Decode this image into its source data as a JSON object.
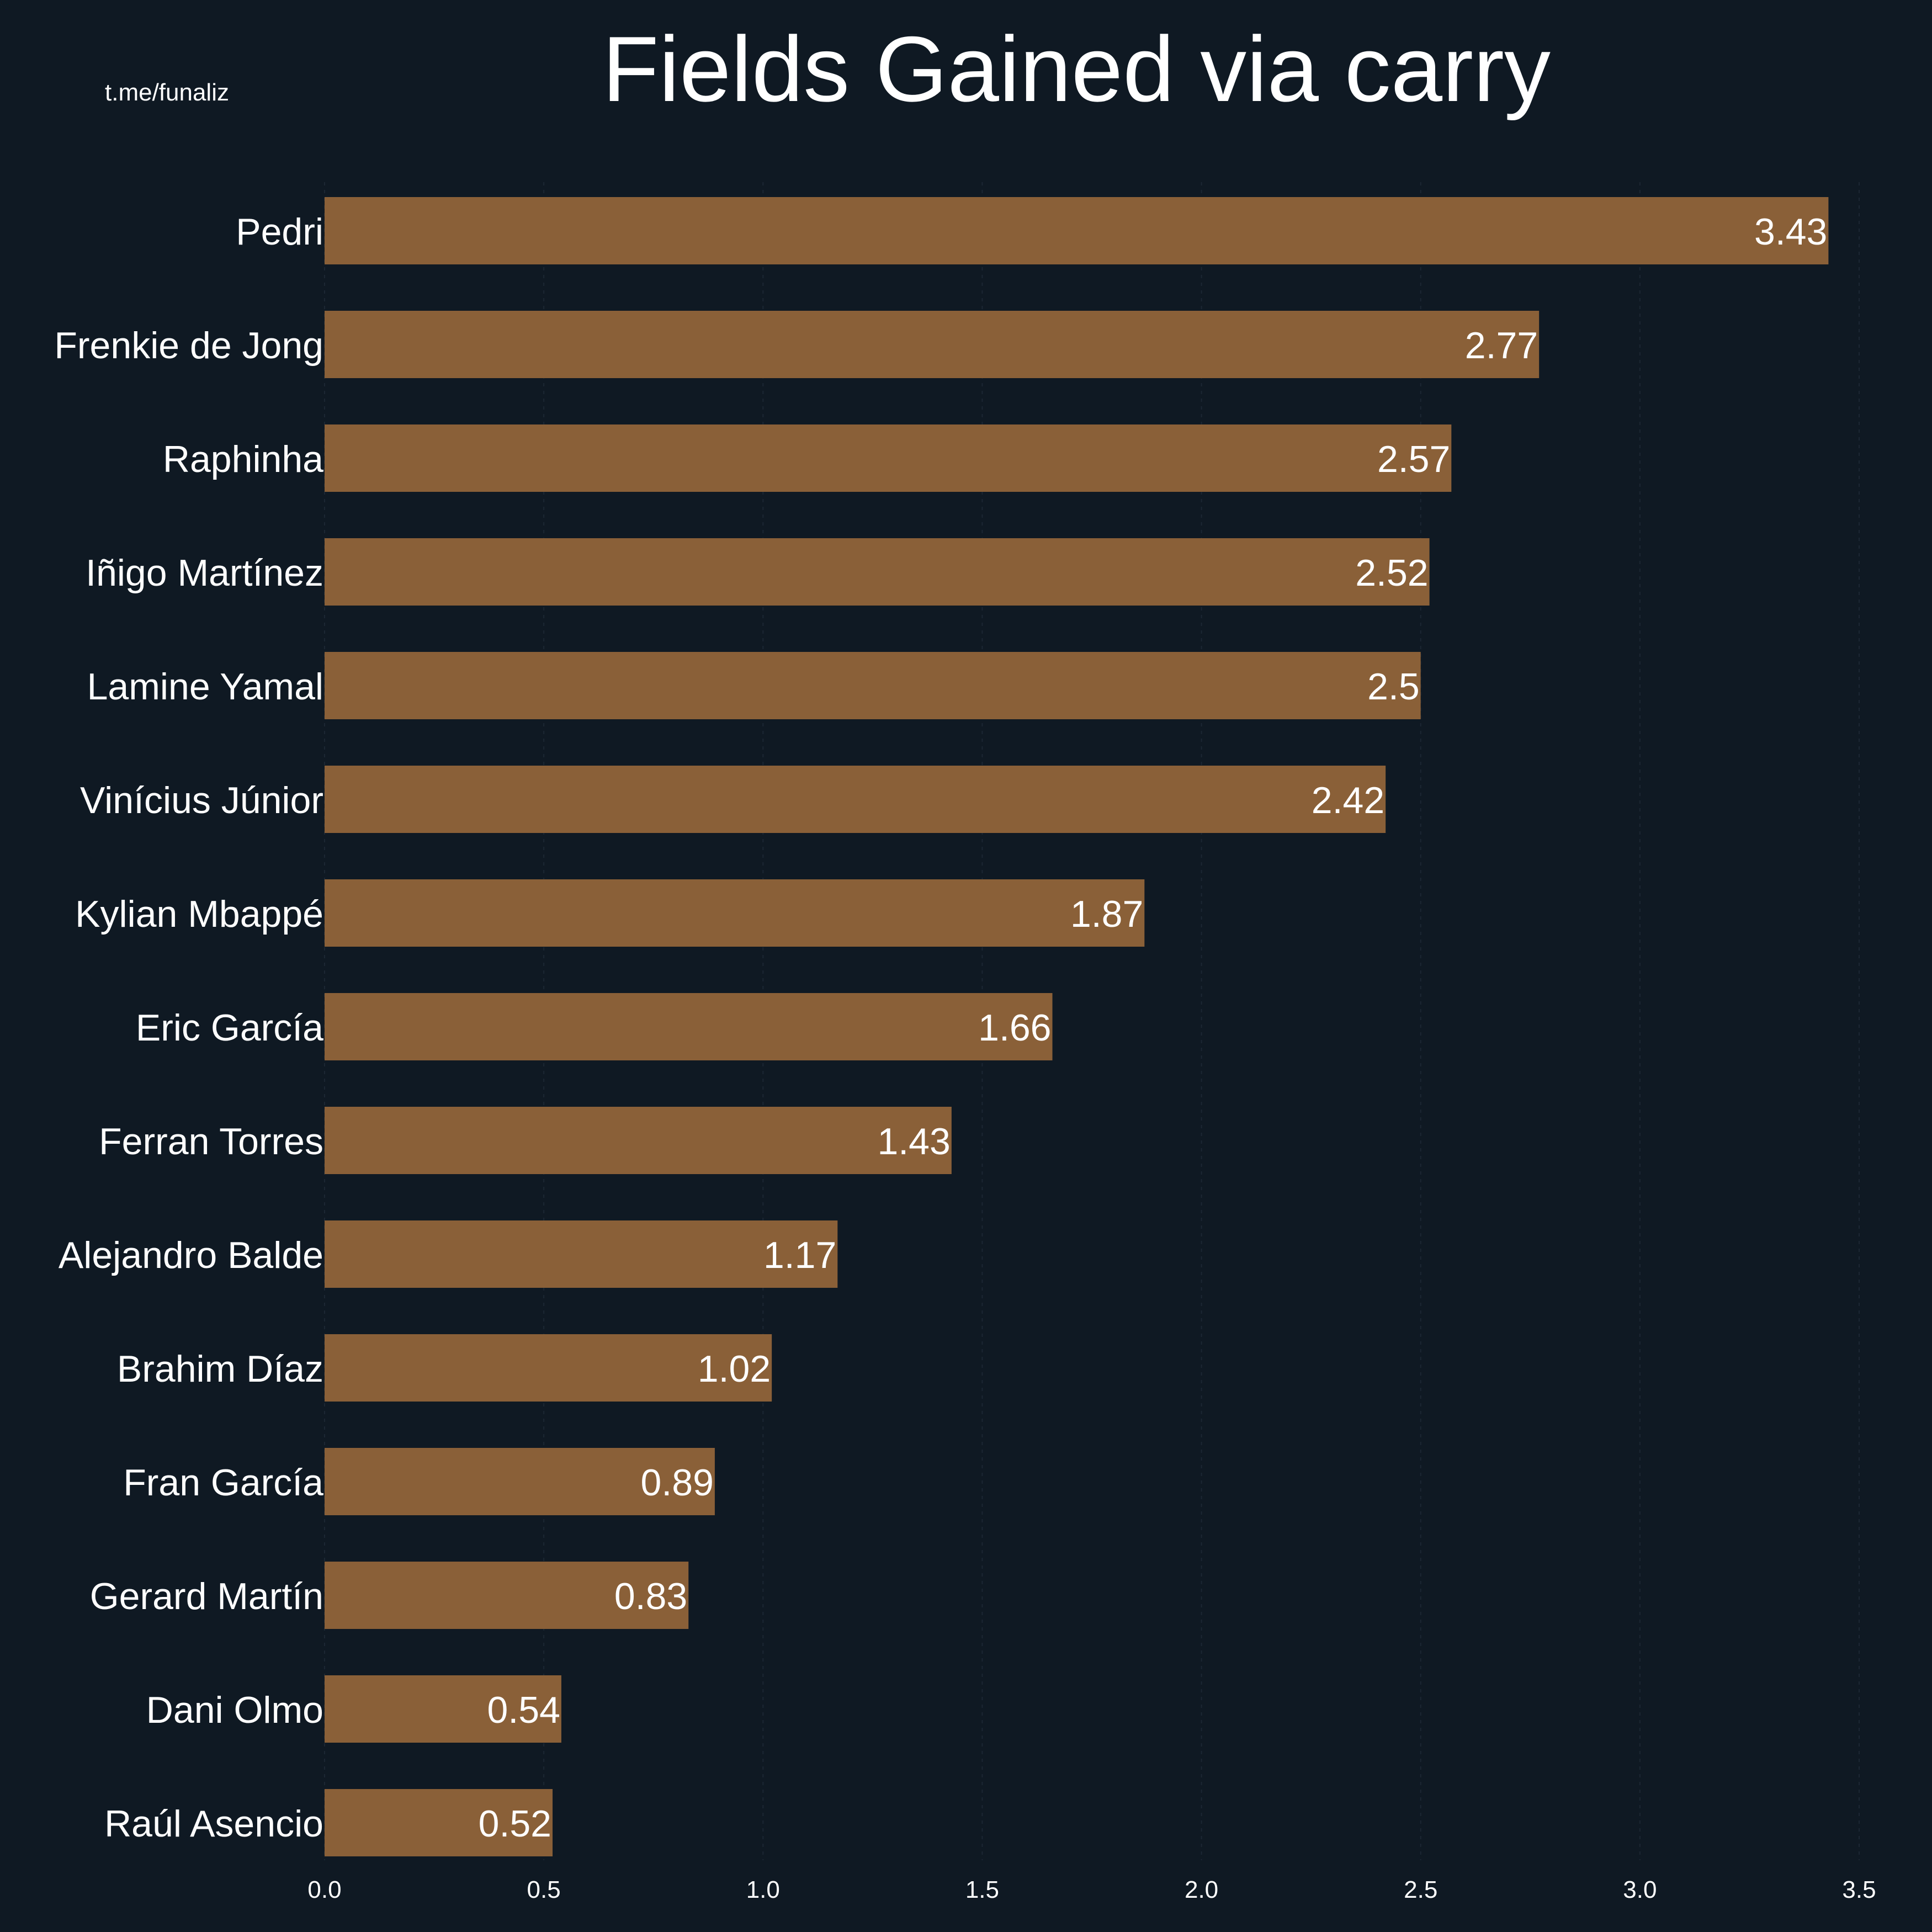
{
  "watermark": "t.me/funaliz",
  "colors": {
    "background": "#0f1923",
    "bar": "#8a6038",
    "text": "#ffffff",
    "grid": "#1c2733"
  },
  "chart_data": {
    "type": "bar",
    "orientation": "horizontal",
    "title": "Fields Gained via carry",
    "xlabel": "",
    "ylabel": "",
    "xlim": [
      0,
      3.5
    ],
    "x_ticks": [
      "0.0",
      "0.5",
      "1.0",
      "1.5",
      "2.0",
      "2.5",
      "3.0",
      "3.5"
    ],
    "grid": false,
    "categories": [
      "Pedri",
      "Frenkie de Jong",
      "Raphinha",
      "Iñigo Martínez",
      "Lamine Yamal",
      "Vinícius Júnior",
      "Kylian Mbappé",
      "Eric García",
      "Ferran Torres",
      "Alejandro Balde",
      "Brahim Díaz",
      "Fran García",
      "Gerard Martín",
      "Dani Olmo",
      "Raúl Asencio"
    ],
    "values": [
      3.43,
      2.77,
      2.57,
      2.52,
      2.5,
      2.42,
      1.87,
      1.66,
      1.43,
      1.17,
      1.02,
      0.89,
      0.83,
      0.54,
      0.52
    ],
    "value_labels": [
      "3.43",
      "2.77",
      "2.57",
      "2.52",
      "2.5",
      "2.42",
      "1.87",
      "1.66",
      "1.43",
      "1.17",
      "1.02",
      "0.89",
      "0.83",
      "0.54",
      "0.52"
    ]
  }
}
